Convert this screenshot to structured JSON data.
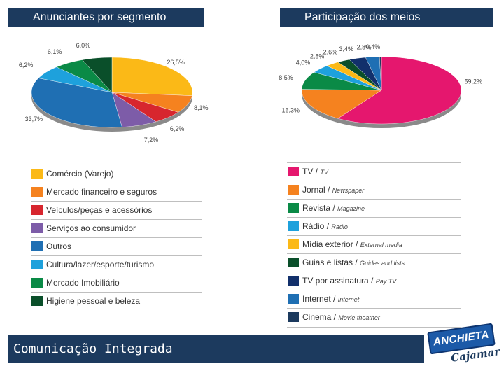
{
  "slide": {
    "footer": "Comunicação Integrada",
    "logo_main": "ANCHIETA",
    "logo_sub": "Cajamar"
  },
  "chart_data": [
    {
      "type": "pie",
      "title": "Anunciantes por segmento",
      "series": [
        {
          "name": "Comércio (Varejo)",
          "value": 26.5,
          "label": "26,5%",
          "color": "#fbb917"
        },
        {
          "name": "Mercado financeiro e seguros",
          "value": 8.1,
          "label": "8,1%",
          "color": "#f5821f"
        },
        {
          "name": "Veículos/peças e acessórios",
          "value": 6.2,
          "label": "6,2%",
          "color": "#d7262e"
        },
        {
          "name": "Serviços ao consumidor",
          "value": 7.2,
          "label": "7,2%",
          "color": "#7d5ca8"
        },
        {
          "name": "Outros",
          "value": 33.7,
          "label": "33,7%",
          "color": "#1f6fb3"
        },
        {
          "name": "Cultura/lazer/esporte/turismo",
          "value": 6.2,
          "label": "6,2%",
          "color": "#1ea1dc"
        },
        {
          "name": "Mercado Imobiliário",
          "value": 6.1,
          "label": "6,1%",
          "color": "#0a8a46"
        },
        {
          "name": "Higiene pessoal e beleza",
          "value": 6.0,
          "label": "6,0%",
          "color": "#0a4f2a"
        }
      ]
    },
    {
      "type": "pie",
      "title": "Participação dos meios",
      "series": [
        {
          "name": "TV",
          "name_en": "TV",
          "value": 59.2,
          "label": "59,2%",
          "color": "#e5176e"
        },
        {
          "name": "Jornal",
          "name_en": "Newspaper",
          "value": 16.3,
          "label": "16,3%",
          "color": "#f5821f"
        },
        {
          "name": "Revista",
          "name_en": "Magazine",
          "value": 8.5,
          "label": "8,5%",
          "color": "#0a8a46"
        },
        {
          "name": "Rádio",
          "name_en": "Radio",
          "value": 4.0,
          "label": "4,0%",
          "color": "#1ea1dc"
        },
        {
          "name": "Mídia exterior",
          "name_en": "External media",
          "value": 2.8,
          "label": "2,8%",
          "color": "#fbb917"
        },
        {
          "name": "Guias e listas",
          "name_en": "Guides and lists",
          "value": 2.6,
          "label": "2,6%",
          "color": "#0a4f2a"
        },
        {
          "name": "TV por assinatura",
          "name_en": "Pay TV",
          "value": 3.4,
          "label": "3,4%",
          "color": "#12306b"
        },
        {
          "name": "Internet",
          "name_en": "Internet",
          "value": 2.8,
          "label": "2,8%",
          "color": "#1f6fb3"
        },
        {
          "name": "Cinema",
          "name_en": "Movie theather",
          "value": 0.4,
          "label": "0,4%",
          "color": "#1c3a5e"
        }
      ]
    }
  ]
}
